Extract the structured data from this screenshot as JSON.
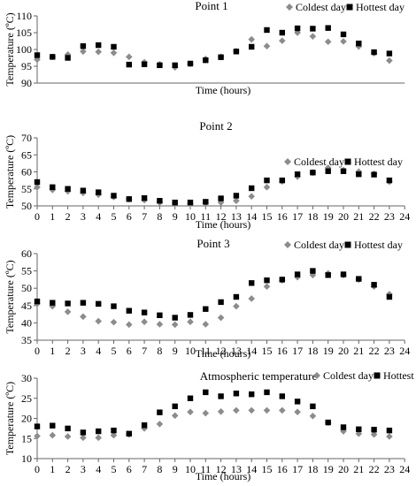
{
  "figure": {
    "xlabel": "Time (hours)",
    "ylabel": "Temperature (ºC)"
  },
  "chart_data": [
    {
      "type": "scatter",
      "title": "Point 1",
      "xlabel": "Time (hours)",
      "ylabel": "Temperature (ºC)",
      "x": [
        0,
        1,
        2,
        3,
        4,
        5,
        6,
        7,
        8,
        9,
        10,
        11,
        12,
        13,
        14,
        15,
        16,
        17,
        18,
        19,
        20,
        21,
        22,
        23
      ],
      "xticks": [],
      "ylim": [
        90,
        110
      ],
      "yticks": [
        90,
        95,
        100,
        105,
        110
      ],
      "grid": false,
      "legend_position": "top-right",
      "series": [
        {
          "name": "Coldest day",
          "marker": "diamond",
          "color": "#8c8c8c",
          "values": [
            97.0,
            97.8,
            98.5,
            99.4,
            99.3,
            99.0,
            97.8,
            96.2,
            95.6,
            94.7,
            95.7,
            97.2,
            97.8,
            99.5,
            103.0,
            101.0,
            102.6,
            105.0,
            103.9,
            102.3,
            102.4,
            100.9,
            98.9,
            96.7
          ]
        },
        {
          "name": "Hottest day",
          "marker": "square",
          "color": "#000000",
          "values": [
            98.3,
            97.8,
            97.5,
            101.0,
            101.3,
            100.8,
            95.5,
            95.6,
            95.3,
            95.3,
            95.8,
            96.8,
            97.7,
            99.4,
            100.8,
            105.8,
            105.0,
            106.3,
            106.2,
            106.4,
            104.5,
            101.8,
            99.2,
            98.8
          ]
        }
      ]
    },
    {
      "type": "scatter",
      "title": "Point 2",
      "xlabel": "Time (hours)",
      "ylabel": "Temperature (ºC)",
      "x": [
        0,
        1,
        2,
        3,
        4,
        5,
        6,
        7,
        8,
        9,
        10,
        11,
        12,
        13,
        14,
        15,
        16,
        17,
        18,
        19,
        20,
        21,
        22,
        23
      ],
      "xticks": [
        0,
        1,
        2,
        3,
        4,
        5,
        6,
        7,
        8,
        9,
        10,
        11,
        12,
        13,
        14,
        15,
        16,
        17,
        18,
        19,
        20,
        21,
        22,
        23,
        24
      ],
      "ylim": [
        50,
        70
      ],
      "yticks": [
        50,
        55,
        60,
        65,
        70
      ],
      "grid": false,
      "legend_position": "right",
      "series": [
        {
          "name": "Coldest day",
          "marker": "diamond",
          "color": "#8c8c8c",
          "values": [
            55.5,
            54.7,
            54.3,
            53.8,
            53.3,
            52.6,
            52.0,
            51.7,
            51.0,
            50.8,
            50.6,
            50.8,
            51.0,
            51.5,
            52.8,
            55.5,
            57.2,
            58.6,
            59.8,
            61.2,
            60.5,
            60.1,
            59.4,
            57.1
          ]
        },
        {
          "name": "Hottest day",
          "marker": "square",
          "color": "#000000",
          "values": [
            57.0,
            55.5,
            55.0,
            54.5,
            54.0,
            53.0,
            52.0,
            52.3,
            51.5,
            51.0,
            51.0,
            51.2,
            52.2,
            53.0,
            55.2,
            57.5,
            57.5,
            59.3,
            59.8,
            60.2,
            60.2,
            59.3,
            59.2,
            57.5
          ]
        }
      ]
    },
    {
      "type": "scatter",
      "title": "Point 3",
      "xlabel": "Time (hours)",
      "ylabel": "Temperature (ºC)",
      "x": [
        0,
        1,
        2,
        3,
        4,
        5,
        6,
        7,
        8,
        9,
        10,
        11,
        12,
        13,
        14,
        15,
        16,
        17,
        18,
        19,
        20,
        21,
        22,
        23
      ],
      "xticks": [
        0,
        1,
        2,
        3,
        4,
        5,
        6,
        7,
        8,
        9,
        10,
        11,
        12,
        13,
        14,
        15,
        16,
        17,
        18,
        19,
        20,
        21,
        22,
        23,
        24
      ],
      "ylim": [
        35,
        60
      ],
      "yticks": [
        35,
        40,
        45,
        50,
        55,
        60
      ],
      "grid": false,
      "legend_position": "right",
      "series": [
        {
          "name": "Coldest day",
          "marker": "diamond",
          "color": "#8c8c8c",
          "values": [
            45.5,
            44.8,
            43.2,
            41.8,
            40.5,
            40.2,
            39.5,
            40.3,
            39.6,
            39.5,
            40.3,
            39.6,
            41.5,
            44.8,
            47.0,
            50.5,
            52.3,
            53.2,
            53.8,
            54.3,
            53.8,
            52.5,
            50.5,
            48.3
          ]
        },
        {
          "name": "Hottest day",
          "marker": "square",
          "color": "#000000",
          "values": [
            46.2,
            45.8,
            45.6,
            45.8,
            45.5,
            44.8,
            43.5,
            43.0,
            42.2,
            41.5,
            42.3,
            44.0,
            46.0,
            47.5,
            51.5,
            52.3,
            52.5,
            54.0,
            55.0,
            53.8,
            54.0,
            52.7,
            51.0,
            47.5
          ]
        }
      ]
    },
    {
      "type": "scatter",
      "title": "Atmospheric temperature",
      "xlabel": "Time (hours)",
      "ylabel": "Temperature (ºC)",
      "x": [
        0,
        1,
        2,
        3,
        4,
        5,
        6,
        7,
        8,
        9,
        10,
        11,
        12,
        13,
        14,
        15,
        16,
        17,
        18,
        19,
        20,
        21,
        22,
        23
      ],
      "xticks": [
        0,
        1,
        2,
        3,
        4,
        5,
        6,
        7,
        8,
        9,
        10,
        11,
        12,
        13,
        14,
        15,
        16,
        17,
        18,
        19,
        20,
        21,
        22,
        23,
        24
      ],
      "ylim": [
        10,
        30
      ],
      "yticks": [
        10,
        15,
        20,
        25,
        30
      ],
      "grid": false,
      "legend_position": "top-right",
      "series": [
        {
          "name": "Coldest day",
          "marker": "diamond",
          "color": "#8c8c8c",
          "values": [
            15.6,
            15.8,
            15.5,
            15.2,
            15.2,
            15.8,
            16.0,
            17.5,
            18.6,
            20.7,
            21.6,
            21.3,
            21.7,
            22.0,
            22.0,
            22.0,
            22.0,
            21.6,
            20.6,
            18.9,
            16.8,
            16.2,
            16.0,
            15.5
          ]
        },
        {
          "name": "Hottest day",
          "marker": "square",
          "color": "#000000",
          "values": [
            18.0,
            18.2,
            17.5,
            16.5,
            16.8,
            17.0,
            16.2,
            18.3,
            21.5,
            23.0,
            25.0,
            26.5,
            25.5,
            26.2,
            26.0,
            26.5,
            25.5,
            24.2,
            23.0,
            19.0,
            17.8,
            17.3,
            17.2,
            17.0
          ]
        }
      ]
    }
  ]
}
